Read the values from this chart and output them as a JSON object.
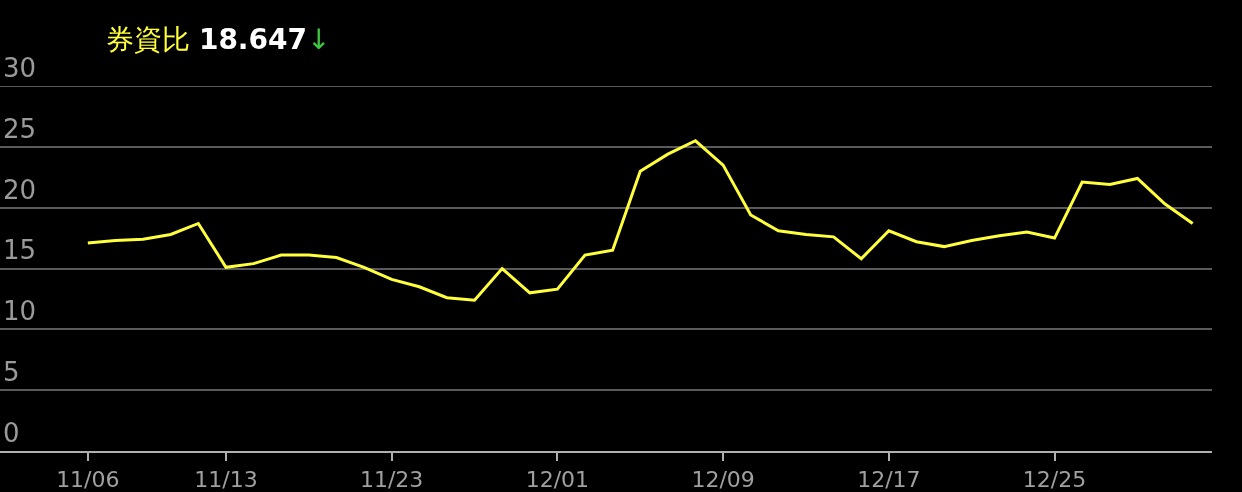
{
  "chart_data": {
    "type": "line",
    "title": "券資比 18.647↓",
    "categories": [
      "11/06",
      null,
      null,
      null,
      null,
      "11/13",
      null,
      null,
      null,
      null,
      null,
      "11/23",
      null,
      null,
      null,
      null,
      null,
      "12/01",
      null,
      null,
      null,
      null,
      null,
      "12/09",
      null,
      null,
      null,
      null,
      null,
      "12/17",
      null,
      null,
      null,
      null,
      null,
      "12/25",
      null,
      null,
      null,
      null,
      null
    ],
    "series": [
      {
        "color": "#ffff3c",
        "values": [
          17.1,
          17.3,
          17.4,
          17.8,
          18.7,
          15.1,
          15.4,
          16.1,
          16.1,
          15.9,
          15.1,
          14.1,
          13.5,
          12.6,
          12.4,
          15.0,
          13.0,
          13.3,
          16.1,
          16.5,
          23.0,
          24.4,
          25.5,
          23.5,
          19.4,
          18.1,
          17.8,
          17.6,
          15.8,
          18.1,
          17.2,
          16.8,
          17.3,
          17.7,
          18.0,
          17.5,
          22.1,
          21.9,
          22.4,
          20.3,
          18.7
        ]
      }
    ],
    "ylim": [
      0,
      30
    ],
    "yticks": [
      0,
      5,
      10,
      15,
      20,
      25,
      30
    ],
    "grid": "y",
    "legend": false,
    "marker": "none",
    "line_style": "solid"
  }
}
